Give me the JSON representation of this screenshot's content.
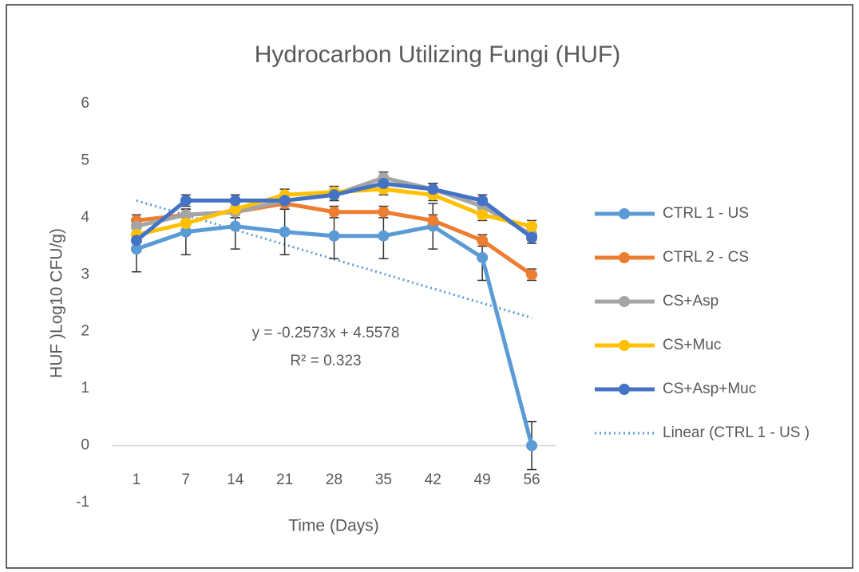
{
  "chart_data": {
    "type": "line",
    "title": "Hydrocarbon Utilizing Fungi (HUF)",
    "x_label": "Time (Days)",
    "y_label": "HUF )Log10 CFU/g)",
    "categories": [
      "1",
      "7",
      "14",
      "21",
      "28",
      "35",
      "42",
      "49",
      "56"
    ],
    "ylim": [
      -1,
      6
    ],
    "yticks": [
      -1,
      0,
      1,
      2,
      3,
      4,
      5,
      6
    ],
    "grid": false,
    "legend": "right",
    "series": [
      {
        "name": "CTRL 1 - US",
        "color": "#5b9bd5",
        "values": [
          3.45,
          3.75,
          3.85,
          3.75,
          3.68,
          3.68,
          3.85,
          3.3,
          0
        ],
        "errors": [
          0.4,
          0.4,
          0.4,
          0.4,
          0.4,
          0.4,
          0.4,
          0.4,
          0.42
        ]
      },
      {
        "name": "CTRL 2 - CS",
        "color": "#ed7d31",
        "values": [
          3.95,
          4.05,
          4.1,
          4.25,
          4.1,
          4.1,
          3.95,
          3.6,
          3.0
        ],
        "errors": [
          0.1,
          0.1,
          0.1,
          0.1,
          0.1,
          0.1,
          0.1,
          0.1,
          0.1
        ]
      },
      {
        "name": "CS+Asp",
        "color": "#a5a5a5",
        "values": [
          3.85,
          4.05,
          4.1,
          4.3,
          4.4,
          4.7,
          4.5,
          4.2,
          3.7
        ],
        "errors": [
          0.1,
          0.1,
          0.1,
          0.1,
          0.1,
          0.1,
          0.1,
          0.1,
          0.1
        ]
      },
      {
        "name": "CS+Muc",
        "color": "#ffc000",
        "values": [
          3.7,
          3.9,
          4.15,
          4.4,
          4.45,
          4.5,
          4.4,
          4.05,
          3.85
        ],
        "errors": [
          0.1,
          0.1,
          0.1,
          0.1,
          0.1,
          0.1,
          0.1,
          0.1,
          0.1
        ]
      },
      {
        "name": "CS+Asp+Muc",
        "color": "#4472c4",
        "values": [
          3.6,
          4.3,
          4.3,
          4.3,
          4.4,
          4.6,
          4.5,
          4.3,
          3.65
        ],
        "errors": [
          0.1,
          0.1,
          0.1,
          0.1,
          0.1,
          0.1,
          0.1,
          0.1,
          0.1
        ]
      }
    ],
    "trendline": {
      "name": "Linear (CTRL 1 - US )",
      "color": "#5b9bd5",
      "slope": -0.2573,
      "intercept": 4.5578
    },
    "annotations": [
      "y = -0.2573x + 4.5578",
      "R² = 0.323"
    ]
  }
}
